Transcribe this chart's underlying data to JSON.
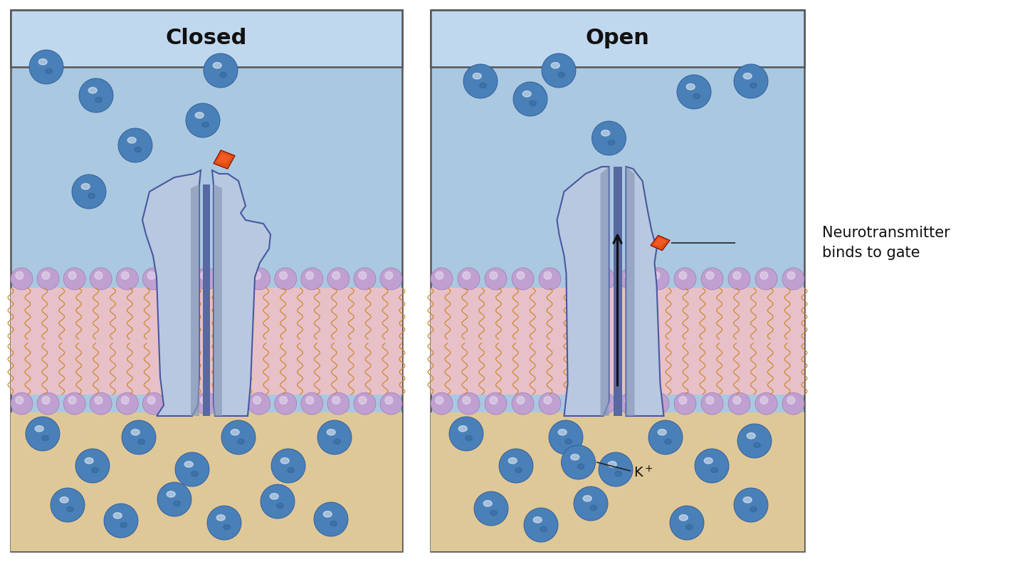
{
  "fig_width": 14.4,
  "fig_height": 7.89,
  "bg_color": "#ffffff",
  "panel_bg": "#aac8e0",
  "header_bg": "#c0d8ee",
  "membrane_pink": "#e8c0c8",
  "membrane_purple": "#c0a0d0",
  "membrane_purple_edge": "#9070b0",
  "intracell_bg": "#dfc898",
  "ion_color": "#4a80b8",
  "ion_color2": "#5a90c8",
  "ion_edge": "#2a5898",
  "neuro_color1": "#cc1100",
  "neuro_color2": "#e05010",
  "channel_light": "#b8c8e0",
  "channel_mid": "#8898b8",
  "channel_dark": "#5868a0",
  "channel_edge": "#4858a0",
  "title_closed": "Closed",
  "title_open": "Open",
  "label_neurotransmitter": "Neurotransmitter\nbinds to gate",
  "arrow_color": "#111111",
  "panel_border": "#555555",
  "tail_color": "#c88828",
  "tail_color2": "#b87820"
}
